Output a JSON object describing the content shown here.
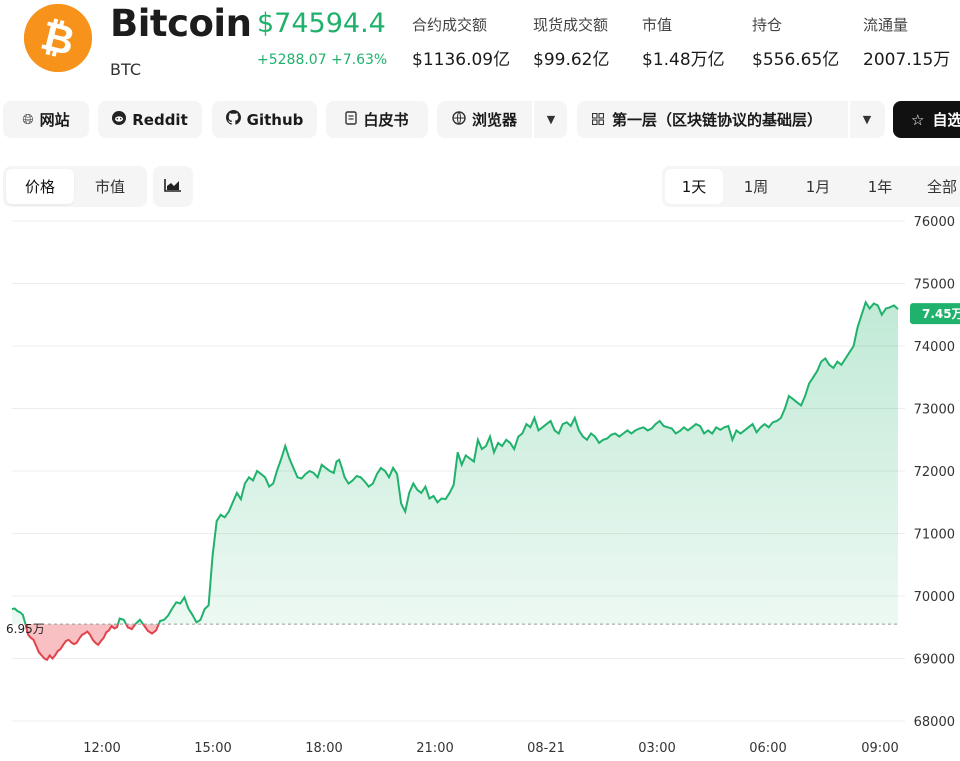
{
  "coin": {
    "name": "Bitcoin",
    "symbol": "BTC",
    "price": "$74594.4",
    "change_abs": "+5288.07",
    "change_pct": "+7.63%",
    "logo_color": "#f7931a"
  },
  "stats": [
    {
      "label": "合约成交额",
      "value": "$1136.09亿"
    },
    {
      "label": "现货成交额",
      "value": "$99.62亿"
    },
    {
      "label": "市值",
      "value": "$1.48万亿"
    },
    {
      "label": "持仓",
      "value": "$556.65亿"
    },
    {
      "label": "流通量",
      "value": "2007.15万"
    }
  ],
  "links": {
    "website": "网站",
    "reddit": "Reddit",
    "github": "Github",
    "whitepaper": "白皮书",
    "explorer": "浏览器",
    "category": "第一层（区块链协议的基础层）",
    "watchlist": "自选"
  },
  "chart_controls": {
    "modes": [
      "价格",
      "市值"
    ],
    "active_mode": "价格",
    "ranges": [
      "1天",
      "1周",
      "1月",
      "1年",
      "全部"
    ],
    "active_range": "1天"
  },
  "colors": {
    "up": "#20b26c",
    "down": "#e0434b",
    "accent_dark": "#111111"
  },
  "chart_data": {
    "type": "area",
    "x_ticks": [
      "12:00",
      "15:00",
      "18:00",
      "21:00",
      "08-21",
      "03:00",
      "06:00",
      "09:00"
    ],
    "y_ticks": [
      68000,
      69000,
      70000,
      71000,
      72000,
      73000,
      74000,
      75000,
      76000
    ],
    "ylim": [
      68000,
      76000
    ],
    "baseline": 69550,
    "baseline_label": "6.95万",
    "last_label": "7.45万",
    "grid": true,
    "series": [
      {
        "x_hours": [
          0,
          0.2,
          0.4,
          0.6,
          0.8,
          1,
          1.2,
          1.4,
          1.6,
          1.8,
          2,
          2.2,
          2.4,
          2.6,
          2.8,
          3,
          3.2,
          3.4,
          3.6,
          3.8,
          4,
          4.2,
          4.4,
          4.6,
          4.8,
          5,
          5.2,
          5.4,
          5.6,
          5.8,
          6,
          6.2,
          6.4,
          6.6,
          6.8,
          7,
          7.2,
          7.4,
          7.6,
          7.8,
          8,
          8.3,
          8.6,
          8.9,
          9.2,
          9.5,
          9.8,
          10.1,
          10.4,
          10.7,
          11,
          11.3,
          11.6,
          11.9,
          12.2,
          12.5,
          12.8,
          13.1,
          13.4,
          13.7,
          14,
          14.3,
          14.6,
          14.9,
          15.2,
          15.5,
          15.8,
          16.1,
          16.4,
          16.7,
          17,
          17.3,
          17.6,
          17.9,
          18.2,
          18.5,
          18.8,
          19.1,
          19.4,
          19.7,
          20,
          20.3,
          20.6,
          20.9,
          21.2,
          21.5,
          21.8,
          22.1,
          22.4,
          22.7,
          23,
          23.3,
          23.6,
          23.9,
          24.1,
          24.3,
          24.5,
          24.7,
          25,
          25.3,
          25.6,
          25.9,
          26.2,
          26.5,
          26.8,
          27.1,
          27.4,
          27.7,
          28,
          28.3,
          28.6,
          28.9,
          29.2,
          29.5,
          29.8,
          30.1,
          30.4,
          30.7,
          31,
          31.3,
          31.6,
          31.9,
          32.2,
          32.5,
          32.8,
          33.1,
          33.4,
          33.7,
          34,
          34.3,
          34.6,
          34.9,
          35.2,
          35.5,
          35.8,
          36.1,
          36.4,
          36.7,
          37,
          37.3,
          37.6,
          37.9,
          38.2,
          38.5,
          38.8,
          39.1,
          39.4,
          39.7,
          40,
          40.3,
          40.6,
          40.9,
          41.2,
          41.5,
          41.8,
          42.1,
          42.4,
          42.7,
          43,
          43.3,
          43.6,
          43.9,
          44.2,
          44.5,
          44.8,
          45.1,
          45.4,
          45.7,
          46,
          46.3,
          46.6,
          46.9,
          47.2,
          47.5,
          47.8,
          48.1,
          48.4,
          48.7,
          49,
          49.3,
          49.6,
          49.9,
          50.2,
          50.5,
          50.8,
          51.1,
          51.4,
          51.7,
          52,
          52.3,
          52.6,
          52.9,
          53.2,
          53.5,
          53.8,
          54.1,
          54.4,
          54.7,
          55,
          55.3,
          55.6,
          55.9,
          56.2,
          56.5,
          56.8,
          57.1,
          57.4,
          57.7,
          58,
          58.3,
          58.6,
          58.9,
          59.2,
          59.5,
          59.8,
          60.1,
          60.4,
          60.7,
          61,
          61.3,
          61.6,
          61.9,
          62.2,
          62.5,
          62.8,
          63.1,
          63.4,
          63.7,
          64,
          64.3,
          64.6,
          64.9,
          65.2,
          65.5,
          65.8,
          66.1,
          66.4,
          66.7,
          67,
          67.3,
          67.6,
          67.9,
          68.2,
          68.5,
          68.8,
          69.1,
          69.4,
          69.7,
          70,
          70.3,
          70.6,
          70.9,
          71.2,
          71.5,
          71.8,
          72.1,
          72.4,
          72.7,
          73,
          73.3,
          73.6,
          73.9,
          74.2,
          74.5,
          74.8,
          75.1,
          75.4,
          75.7,
          76,
          76.3,
          76.6,
          76.9,
          77.2,
          77.5,
          77.8,
          78.1,
          78.4,
          78.7,
          79,
          79.3,
          79.6,
          79.9,
          80.2,
          80.5,
          80.8,
          81.1,
          81.4,
          81.7,
          82,
          82.3,
          82.6,
          82.9,
          83.2,
          83.5,
          83.8,
          84.1,
          84.4,
          84.7,
          85,
          85.3,
          85.6,
          85.9,
          86.2,
          86.5,
          86.8,
          87.1,
          87.4,
          87.7,
          88,
          88.3,
          88.6,
          88.9,
          89.2,
          89.5,
          89.8,
          90.1,
          90.4,
          90.7,
          91,
          91.3,
          91.6,
          91.9,
          92.2,
          92.5,
          92.8,
          93.1,
          93.4,
          93.7,
          94,
          94.3,
          94.6,
          94.9,
          95.2,
          95.5,
          95.8,
          96,
          96.2,
          96.4
        ],
        "note": "price vs time, see values"
      }
    ],
    "time_start": "10:00",
    "time_end": "09:30"
  }
}
